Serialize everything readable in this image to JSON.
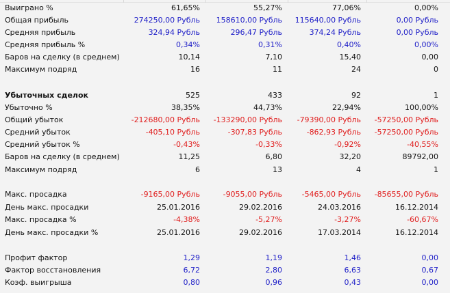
{
  "colors": {
    "positive": "#2020c8",
    "negative": "#e01c1c"
  },
  "rows": [
    {
      "label": "Выиграно %",
      "values": [
        "61,65%",
        "55,27%",
        "77,06%",
        "0,00%"
      ],
      "style": ""
    },
    {
      "label": "Общая прибыль",
      "values": [
        "274250,00 Рубль",
        "158610,00 Рубль",
        "115640,00 Рубль",
        "0,00 Рубль"
      ],
      "style": "blue"
    },
    {
      "label": "Средняя прибыль",
      "values": [
        "324,94 Рубль",
        "296,47 Рубль",
        "374,24 Рубль",
        "0,00 Рубль"
      ],
      "style": "blue"
    },
    {
      "label": "Средняя прибыль %",
      "values": [
        "0,34%",
        "0,31%",
        "0,40%",
        "0,00%"
      ],
      "style": "blue"
    },
    {
      "label": "Баров на сделку (в среднем)",
      "values": [
        "10,14",
        "7,10",
        "15,40",
        "0,00"
      ],
      "style": ""
    },
    {
      "label": "Максимум подряд",
      "values": [
        "16",
        "11",
        "24",
        "0"
      ],
      "style": ""
    },
    {
      "label": "Убыточных сделок",
      "values": [
        "525",
        "433",
        "92",
        "1"
      ],
      "style": "bold"
    },
    {
      "label": "Убыточно %",
      "values": [
        "38,35%",
        "44,73%",
        "22,94%",
        "100,00%"
      ],
      "style": ""
    },
    {
      "label": "Общий убыток",
      "values": [
        "-212680,00 Рубль",
        "-133290,00 Рубль",
        "-79390,00 Рубль",
        "-57250,00 Рубль"
      ],
      "style": "red"
    },
    {
      "label": "Средний убыток",
      "values": [
        "-405,10 Рубль",
        "-307,83 Рубль",
        "-862,93 Рубль",
        "-57250,00 Рубль"
      ],
      "style": "red"
    },
    {
      "label": "Средний убыток %",
      "values": [
        "-0,43%",
        "-0,33%",
        "-0,92%",
        "-40,55%"
      ],
      "style": "red"
    },
    {
      "label": "Баров на сделку (в среднем)",
      "values": [
        "11,25",
        "6,80",
        "32,20",
        "89792,00"
      ],
      "style": ""
    },
    {
      "label": "Максимум подряд",
      "values": [
        "6",
        "13",
        "4",
        "1"
      ],
      "style": ""
    },
    {
      "label": "Макс. просадка",
      "values": [
        "-9165,00 Рубль",
        "-9055,00 Рубль",
        "-5465,00 Рубль",
        "-85655,00 Рубль"
      ],
      "style": "red"
    },
    {
      "label": "День макс. просадки",
      "values": [
        "25.01.2016",
        "29.02.2016",
        "24.03.2016",
        "16.12.2014"
      ],
      "style": ""
    },
    {
      "label": "Макс. просадка %",
      "values": [
        "-4,38%",
        "-5,27%",
        "-3,27%",
        "-60,67%"
      ],
      "style": "red"
    },
    {
      "label": "День макс. просадки %",
      "values": [
        "25.01.2016",
        "29.02.2016",
        "17.03.2014",
        "16.12.2014"
      ],
      "style": ""
    },
    {
      "label": "Профит фактор",
      "values": [
        "1,29",
        "1,19",
        "1,46",
        "0,00"
      ],
      "style": "blue"
    },
    {
      "label": "Фактор восстановления",
      "values": [
        "6,72",
        "2,80",
        "6,63",
        "0,67"
      ],
      "style": "blue"
    },
    {
      "label": "Коэф. выигрыша",
      "values": [
        "0,80",
        "0,96",
        "0,43",
        "0,00"
      ],
      "style": "blue"
    }
  ]
}
